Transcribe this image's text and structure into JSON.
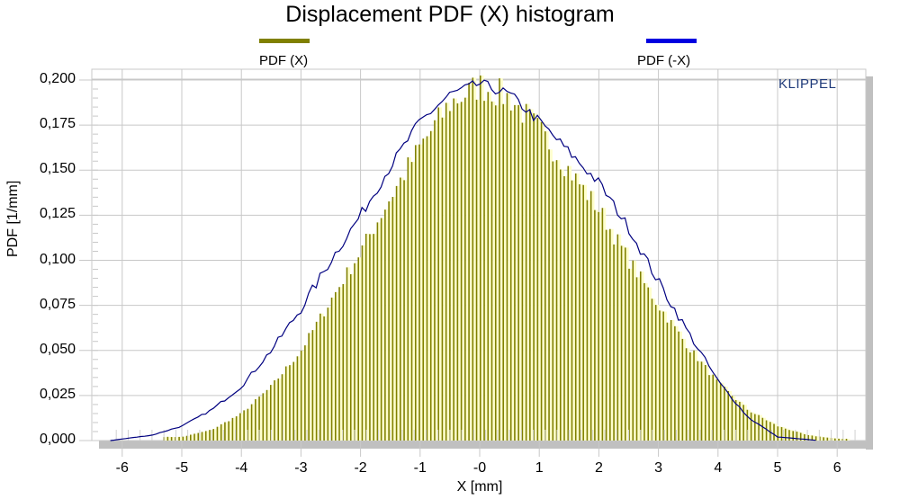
{
  "chart_data": {
    "type": "bar",
    "title": "Displacement PDF (X) histogram",
    "xlabel": "X [mm]",
    "ylabel": "PDF [1/mm]",
    "xlim": [
      -6.5,
      6.5
    ],
    "ylim": [
      0.0,
      0.2
    ],
    "x_ticks": [
      "-6",
      "-5",
      "-4",
      "-3",
      "-2",
      "-1",
      "-0",
      "1",
      "2",
      "3",
      "4",
      "5",
      "6"
    ],
    "y_ticks": [
      "0,000",
      "0,025",
      "0,050",
      "0,075",
      "0,100",
      "0,125",
      "0,150",
      "0,175",
      "0,200"
    ],
    "grid": true,
    "legend_position": "top",
    "series": [
      {
        "name": "PDF (X)",
        "kind": "histogram-bars",
        "color": "#808000",
        "fill_hint": "#ffffc0",
        "bin_width_mm": 0.064,
        "x_range": [
          -5.3,
          6.2
        ],
        "peak_x": 0.05,
        "peak_value": 0.2,
        "approx_points": [
          {
            "x": -5.0,
            "y": 0.002
          },
          {
            "x": -4.5,
            "y": 0.006
          },
          {
            "x": -4.0,
            "y": 0.015
          },
          {
            "x": -3.5,
            "y": 0.03
          },
          {
            "x": -3.0,
            "y": 0.05
          },
          {
            "x": -2.5,
            "y": 0.078
          },
          {
            "x": -2.0,
            "y": 0.105
          },
          {
            "x": -1.5,
            "y": 0.135
          },
          {
            "x": -1.0,
            "y": 0.163
          },
          {
            "x": -0.5,
            "y": 0.187
          },
          {
            "x": 0.0,
            "y": 0.197
          },
          {
            "x": 0.5,
            "y": 0.19
          },
          {
            "x": 1.0,
            "y": 0.172
          },
          {
            "x": 1.5,
            "y": 0.15
          },
          {
            "x": 2.0,
            "y": 0.128
          },
          {
            "x": 2.5,
            "y": 0.1
          },
          {
            "x": 3.0,
            "y": 0.075
          },
          {
            "x": 3.5,
            "y": 0.052
          },
          {
            "x": 4.0,
            "y": 0.032
          },
          {
            "x": 4.5,
            "y": 0.017
          },
          {
            "x": 5.0,
            "y": 0.008
          },
          {
            "x": 5.5,
            "y": 0.003
          },
          {
            "x": 6.0,
            "y": 0.001
          }
        ]
      },
      {
        "name": "PDF (-X)",
        "kind": "line",
        "color": "#000080",
        "x_range": [
          -6.2,
          5.7
        ],
        "peak_x": -0.1,
        "peak_value": 0.2,
        "approx_points": [
          {
            "x": -6.2,
            "y": 0.0
          },
          {
            "x": -5.5,
            "y": 0.003
          },
          {
            "x": -5.0,
            "y": 0.008
          },
          {
            "x": -4.5,
            "y": 0.017
          },
          {
            "x": -4.0,
            "y": 0.03
          },
          {
            "x": -3.5,
            "y": 0.05
          },
          {
            "x": -3.0,
            "y": 0.073
          },
          {
            "x": -2.5,
            "y": 0.1
          },
          {
            "x": -2.0,
            "y": 0.125
          },
          {
            "x": -1.5,
            "y": 0.152
          },
          {
            "x": -1.0,
            "y": 0.177
          },
          {
            "x": -0.5,
            "y": 0.192
          },
          {
            "x": 0.0,
            "y": 0.198
          },
          {
            "x": 0.5,
            "y": 0.192
          },
          {
            "x": 1.0,
            "y": 0.177
          },
          {
            "x": 1.5,
            "y": 0.16
          },
          {
            "x": 2.0,
            "y": 0.143
          },
          {
            "x": 2.5,
            "y": 0.118
          },
          {
            "x": 3.0,
            "y": 0.088
          },
          {
            "x": 3.5,
            "y": 0.06
          },
          {
            "x": 4.0,
            "y": 0.033
          },
          {
            "x": 4.5,
            "y": 0.013
          },
          {
            "x": 5.0,
            "y": 0.002
          },
          {
            "x": 5.7,
            "y": 0.0
          }
        ]
      }
    ]
  },
  "header": {
    "title": "Displacement PDF (X) histogram"
  },
  "legend": {
    "items": [
      {
        "label": "PDF (X)",
        "color": "#808000"
      },
      {
        "label": "PDF (-X)",
        "color": "#0000e0"
      }
    ]
  },
  "axes": {
    "xlabel": "X [mm]",
    "ylabel": "PDF [1/mm]",
    "x_ticks": [
      {
        "label": "-6",
        "v": -6
      },
      {
        "label": "-5",
        "v": -5
      },
      {
        "label": "-4",
        "v": -4
      },
      {
        "label": "-3",
        "v": -3
      },
      {
        "label": "-2",
        "v": -2
      },
      {
        "label": "-1",
        "v": -1
      },
      {
        "label": "-0",
        "v": 0
      },
      {
        "label": "1",
        "v": 1
      },
      {
        "label": "2",
        "v": 2
      },
      {
        "label": "3",
        "v": 3
      },
      {
        "label": "4",
        "v": 4
      },
      {
        "label": "5",
        "v": 5
      },
      {
        "label": "6",
        "v": 6
      }
    ],
    "y_ticks": [
      {
        "label": "0,200",
        "v": 0.2
      },
      {
        "label": "0,175",
        "v": 0.175
      },
      {
        "label": "0,150",
        "v": 0.15
      },
      {
        "label": "0,125",
        "v": 0.125
      },
      {
        "label": "0,100",
        "v": 0.1
      },
      {
        "label": "0,075",
        "v": 0.075
      },
      {
        "label": "0,050",
        "v": 0.05
      },
      {
        "label": "0,025",
        "v": 0.025
      },
      {
        "label": "0,000",
        "v": 0.0
      }
    ]
  },
  "brand": {
    "label": "KLIPPEL",
    "color": "#1f3a7a"
  }
}
